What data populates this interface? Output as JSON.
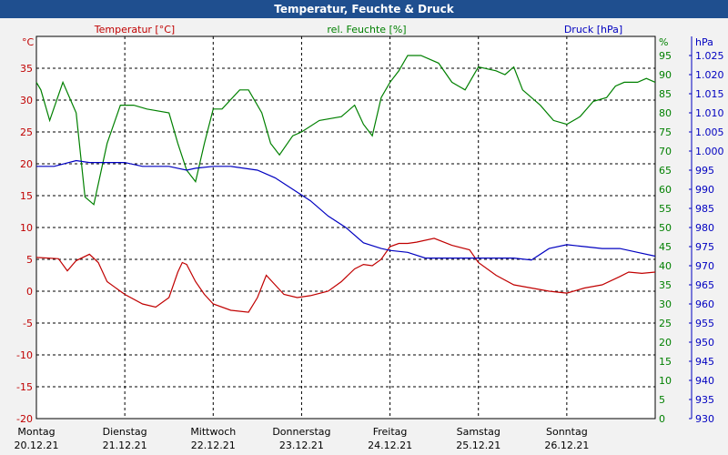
{
  "title": "Temperatur, Feuchte & Druck",
  "colors": {
    "temperature": "#c00000",
    "humidity": "#008000",
    "pressure": "#0000c0",
    "title_bg": "#1f4f8f"
  },
  "chart_data": {
    "type": "line",
    "title": "Temperatur, Feuchte & Druck",
    "grid": true,
    "x_range": [
      0,
      7
    ],
    "x_ticks": [
      {
        "day": "Montag",
        "date": "20.12.21"
      },
      {
        "day": "Dienstag",
        "date": "21.12.21"
      },
      {
        "day": "Mittwoch",
        "date": "22.12.21"
      },
      {
        "day": "Donnerstag",
        "date": "23.12.21"
      },
      {
        "day": "Freitag",
        "date": "24.12.21"
      },
      {
        "day": "Samstag",
        "date": "25.12.21"
      },
      {
        "day": "Sonntag",
        "date": "26.12.21"
      }
    ],
    "axes": {
      "temperature": {
        "unit": "°C",
        "label": "Temperatur [°C]",
        "ylim": [
          -20,
          40
        ],
        "ticks": [
          "-20",
          "-15",
          "-10",
          "-5",
          "0",
          "5",
          "10",
          "15",
          "20",
          "25",
          "30",
          "35"
        ]
      },
      "humidity": {
        "unit": "%",
        "label": "rel. Feuchte [%]",
        "ylim": [
          0,
          100
        ],
        "ticks": [
          "0",
          "5",
          "10",
          "15",
          "20",
          "25",
          "30",
          "35",
          "40",
          "45",
          "50",
          "55",
          "60",
          "65",
          "70",
          "75",
          "80",
          "85",
          "90",
          "95"
        ]
      },
      "pressure": {
        "unit": "hPa",
        "label": "Druck [hPa]",
        "ylim": [
          930,
          1030
        ],
        "ticks": [
          "930",
          "935",
          "940",
          "945",
          "950",
          "955",
          "960",
          "965",
          "970",
          "975",
          "980",
          "985",
          "990",
          "995",
          "1.000",
          "1.005",
          "1.010",
          "1.015",
          "1.020",
          "1.025"
        ]
      }
    },
    "series": [
      {
        "name": "Temperatur [°C]",
        "axis": "temperature",
        "x": [
          0,
          0.25,
          0.35,
          0.45,
          0.6,
          0.7,
          0.8,
          1.0,
          1.2,
          1.35,
          1.5,
          1.6,
          1.65,
          1.7,
          1.8,
          1.9,
          2.0,
          2.2,
          2.4,
          2.5,
          2.6,
          2.7,
          2.8,
          2.95,
          3.1,
          3.3,
          3.45,
          3.6,
          3.7,
          3.8,
          3.9,
          4.0,
          4.1,
          4.2,
          4.3,
          4.5,
          4.7,
          4.9,
          5.0,
          5.2,
          5.4,
          5.6,
          5.8,
          6.0,
          6.2,
          6.4,
          6.6,
          6.7,
          6.85,
          7.0
        ],
        "values": [
          5.3,
          5.1,
          3.2,
          4.8,
          5.8,
          4.5,
          1.5,
          -0.5,
          -2,
          -2.5,
          -1,
          3,
          4.5,
          4.2,
          1.5,
          -0.5,
          -2,
          -3,
          -3.3,
          -1,
          2.5,
          1,
          -0.5,
          -1,
          -0.7,
          0,
          1.5,
          3.5,
          4.2,
          4,
          5,
          7,
          7.5,
          7.5,
          7.7,
          8.3,
          7.2,
          6.5,
          4.5,
          2.5,
          1,
          0.5,
          0,
          -0.3,
          0.5,
          1,
          2.3,
          3,
          2.8,
          3
        ]
      },
      {
        "name": "rel. Feuchte [%]",
        "axis": "humidity",
        "x": [
          0,
          0.05,
          0.15,
          0.3,
          0.45,
          0.55,
          0.65,
          0.8,
          0.95,
          1.1,
          1.25,
          1.5,
          1.6,
          1.7,
          1.8,
          1.9,
          2.0,
          2.1,
          2.3,
          2.4,
          2.55,
          2.65,
          2.75,
          2.9,
          3.0,
          3.2,
          3.45,
          3.6,
          3.7,
          3.8,
          3.9,
          4.0,
          4.1,
          4.2,
          4.35,
          4.55,
          4.7,
          4.85,
          5.0,
          5.2,
          5.3,
          5.4,
          5.5,
          5.7,
          5.85,
          6.0,
          6.15,
          6.3,
          6.45,
          6.55,
          6.65,
          6.8,
          6.9,
          7.0
        ],
        "values": [
          88,
          86,
          78,
          88,
          80,
          58,
          56,
          72,
          82,
          82,
          81,
          80,
          72,
          65,
          62,
          72,
          81,
          81,
          86,
          86,
          80,
          72,
          69,
          74,
          75,
          78,
          79,
          82,
          77,
          74,
          84,
          88,
          91,
          95,
          95,
          93,
          88,
          86,
          92,
          91,
          90,
          92,
          86,
          82,
          78,
          77,
          79,
          83,
          84,
          87,
          88,
          88,
          89,
          88
        ],
        "units": "%"
      },
      {
        "name": "Druck [hPa]",
        "axis": "pressure",
        "x": [
          0,
          0.2,
          0.45,
          0.6,
          0.8,
          1.0,
          1.2,
          1.5,
          1.6,
          1.7,
          1.8,
          2.0,
          2.2,
          2.5,
          2.7,
          2.9,
          3.1,
          3.3,
          3.5,
          3.7,
          3.9,
          4.0,
          4.2,
          4.4,
          4.6,
          4.8,
          5.0,
          5.2,
          5.4,
          5.6,
          5.8,
          6.0,
          6.2,
          6.4,
          6.6,
          6.8,
          7.0
        ],
        "values": [
          996,
          996,
          997.5,
          997,
          997,
          997,
          996,
          996,
          995.5,
          995,
          995.5,
          996,
          996,
          995,
          993,
          990,
          987,
          983,
          980,
          976,
          974.5,
          974,
          973.5,
          972,
          972,
          972,
          972,
          972,
          972,
          971.5,
          974.5,
          975.5,
          975,
          974.5,
          974.5,
          973.5,
          972.5
        ]
      }
    ]
  }
}
